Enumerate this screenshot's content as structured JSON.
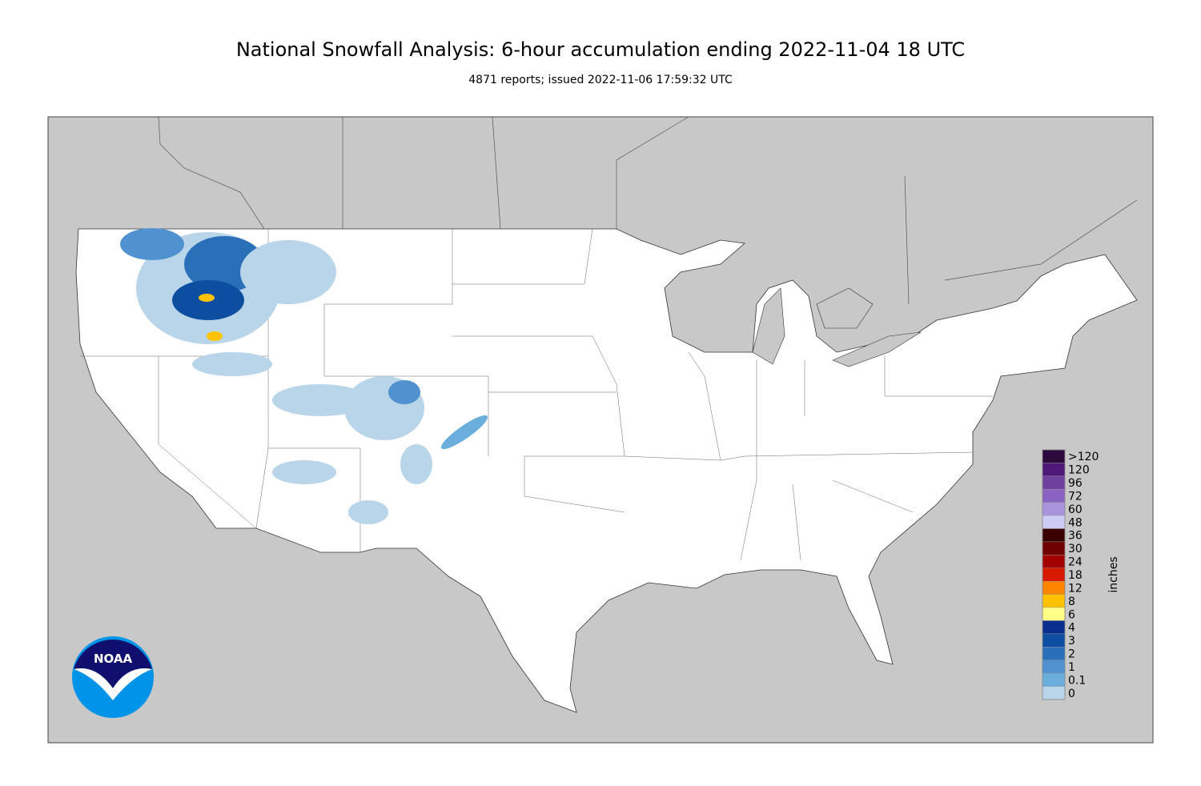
{
  "header": {
    "title": "National Snowfall Analysis: 6-hour accumulation ending 2022-11-04 18 UTC",
    "subtitle": "4871 reports; issued 2022-11-06 17:59:32 UTC"
  },
  "logo": {
    "text": "NOAA"
  },
  "legend": {
    "label": "inches",
    "items": [
      {
        "label": ">120",
        "color": "#2d0a3c"
      },
      {
        "label": "120",
        "color": "#4e1878"
      },
      {
        "label": "96",
        "color": "#70409e"
      },
      {
        "label": "72",
        "color": "#8a62c2"
      },
      {
        "label": "60",
        "color": "#a994dc"
      },
      {
        "label": "48",
        "color": "#cfcbf7"
      },
      {
        "label": "36",
        "color": "#3a0000"
      },
      {
        "label": "30",
        "color": "#6e0000"
      },
      {
        "label": "24",
        "color": "#a30000"
      },
      {
        "label": "18",
        "color": "#d61a00"
      },
      {
        "label": "12",
        "color": "#ff8400"
      },
      {
        "label": "8",
        "color": "#ffc200"
      },
      {
        "label": "6",
        "color": "#ffff88"
      },
      {
        "label": "4",
        "color": "#0a2e8e"
      },
      {
        "label": "3",
        "color": "#0e4ea0"
      },
      {
        "label": "2",
        "color": "#2a70b8"
      },
      {
        "label": "1",
        "color": "#4f92cf"
      },
      {
        "label": "0.1",
        "color": "#6aaedd"
      },
      {
        "label": "0",
        "color": "#b8d5ea"
      }
    ]
  }
}
